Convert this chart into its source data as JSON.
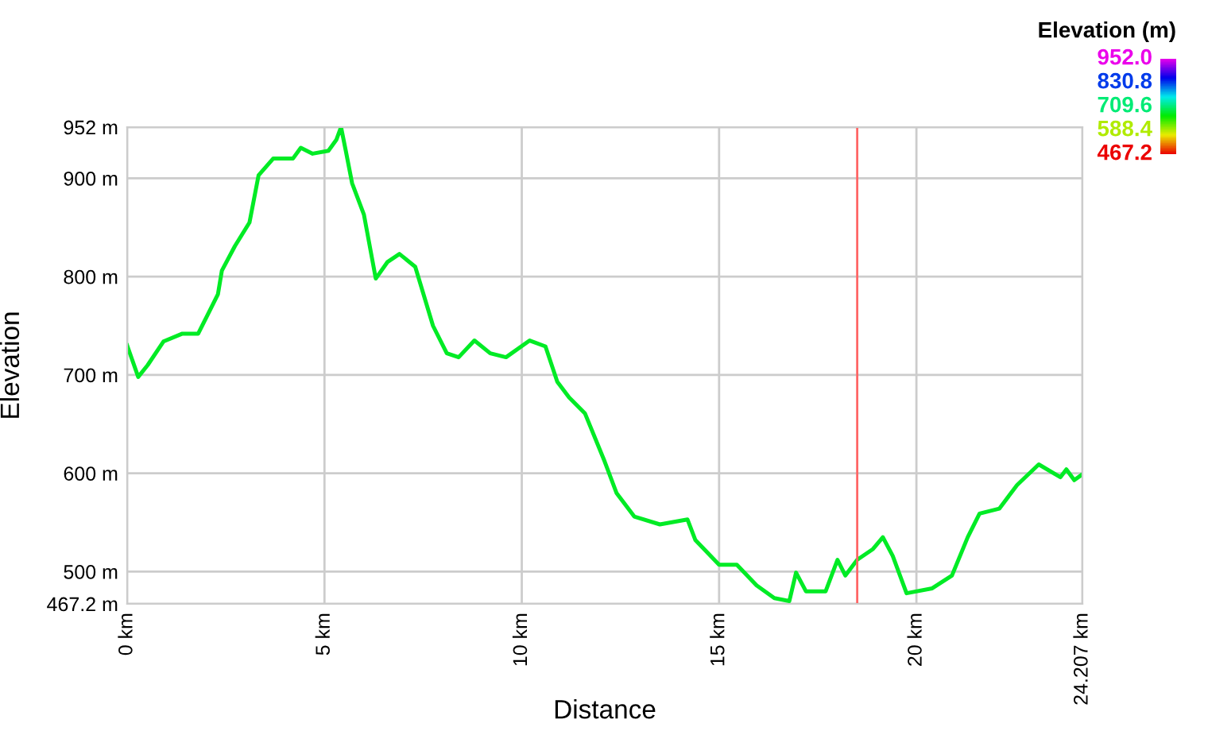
{
  "chart_data": {
    "type": "line",
    "xlabel": "Distance",
    "ylabel": "Elevation",
    "clabel": "Elevation (m)",
    "x": [
      0,
      0.28,
      0.52,
      0.92,
      1.4,
      1.8,
      2.0,
      2.3,
      2.4,
      2.73,
      3.1,
      3.33,
      3.7,
      4.2,
      4.4,
      4.7,
      5.1,
      5.3,
      5.42,
      5.54,
      5.7,
      6.0,
      6.3,
      6.6,
      6.9,
      7.3,
      7.75,
      8.1,
      8.4,
      8.8,
      9.2,
      9.6,
      10.2,
      10.6,
      10.9,
      11.2,
      11.6,
      12.1,
      12.4,
      12.85,
      13.5,
      14.2,
      14.4,
      15.0,
      15.45,
      15.95,
      16.4,
      16.78,
      16.95,
      17.2,
      17.7,
      18.0,
      18.2,
      18.5,
      18.9,
      19.15,
      19.4,
      19.75,
      20.4,
      20.9,
      21.3,
      21.6,
      22.1,
      22.55,
      23.1,
      23.65,
      23.8,
      24.0,
      24.207
    ],
    "series": [
      {
        "values": [
          730,
          698,
          710,
          734,
          742,
          742,
          758,
          782,
          806,
          831,
          855,
          903,
          920,
          920,
          931,
          925,
          928,
          939,
          952,
          928,
          895,
          863,
          798,
          815,
          823,
          810,
          750,
          722,
          718,
          735,
          722,
          718,
          735,
          729,
          693,
          677,
          661,
          612,
          580,
          556,
          548,
          553,
          532,
          507,
          507,
          486,
          473,
          470,
          499,
          480,
          480,
          512,
          496,
          512,
          523,
          535,
          516,
          478,
          483,
          496,
          535,
          559,
          564,
          588,
          609,
          596,
          604,
          593,
          599
        ]
      }
    ],
    "xlim": [
      0,
      24.207
    ],
    "xticks": [
      {
        "value": 0,
        "label": "0 km"
      },
      {
        "value": 5,
        "label": "5 km"
      },
      {
        "value": 10,
        "label": "10 km"
      },
      {
        "value": 15,
        "label": "15 km"
      },
      {
        "value": 20,
        "label": "20 km"
      },
      {
        "value": 24.207,
        "label": "24.207 km"
      }
    ],
    "ylim": [
      467.2,
      952
    ],
    "yticks": [
      {
        "value": 467.2,
        "label": "467.2 m"
      },
      {
        "value": 500,
        "label": "500 m"
      },
      {
        "value": 600,
        "label": "600 m"
      },
      {
        "value": 700,
        "label": "700 m"
      },
      {
        "value": 800,
        "label": "800 m"
      },
      {
        "value": 900,
        "label": "900 m"
      },
      {
        "value": 952,
        "label": "952 m"
      }
    ],
    "clim": [
      467.2,
      952
    ],
    "cticks": [
      {
        "value": 952,
        "label": "952.0"
      },
      {
        "value": 830.8,
        "label": "830.8"
      },
      {
        "value": 709.6,
        "label": "709.6"
      },
      {
        "value": 588.4,
        "label": "588.4"
      },
      {
        "value": 467.2,
        "label": "467.2"
      }
    ],
    "ref_lines": [
      {
        "axis": "x",
        "value": 18.5,
        "color": "#ff6666"
      }
    ],
    "grid": true
  }
}
